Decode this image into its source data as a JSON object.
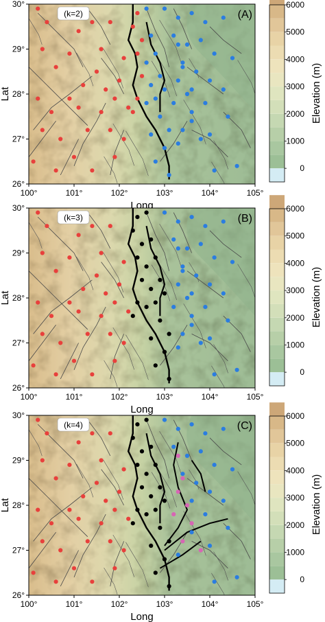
{
  "panels": [
    {
      "id": "A",
      "tag": "(A)",
      "k_label": "(k=2)",
      "clusters": 2
    },
    {
      "id": "B",
      "tag": "(B)",
      "k_label": "(k=3)",
      "clusters": 3
    },
    {
      "id": "C",
      "tag": "(C)",
      "k_label": "(k=4)",
      "clusters": 4
    }
  ],
  "axes": {
    "x_label": "Long",
    "y_label": "Lat",
    "x_ticks": [
      "100°",
      "101°",
      "102°",
      "103°",
      "104°",
      "105°"
    ],
    "y_ticks": [
      "26°",
      "27°",
      "28°",
      "29°",
      "30°"
    ],
    "lon_range": [
      100,
      105
    ],
    "lat_range": [
      26,
      30
    ]
  },
  "colorbar": {
    "label": "Elevation (m)",
    "ticks": [
      "6000",
      "5000",
      "4000",
      "3000",
      "2000",
      "1000",
      "0"
    ],
    "range": [
      -500,
      6000
    ],
    "colors": [
      "#d4ecf4",
      "#9cbf96",
      "#a9c7a0",
      "#b7cfa8",
      "#c5d8b2",
      "#d3dfb9",
      "#dfe5bf",
      "#e9e6c0",
      "#eee3bc",
      "#ecdcb2",
      "#e8d3a6",
      "#e1c699",
      "#d8b888",
      "#cda778"
    ]
  },
  "cluster_colors": {
    "red": "#e8403c",
    "blue": "#2b7de0",
    "black": "#000000",
    "magenta": "#d766b4"
  },
  "legend_position": "none"
}
